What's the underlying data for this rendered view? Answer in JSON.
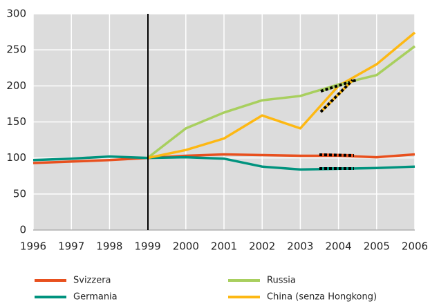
{
  "chart_data": {
    "type": "line",
    "x": [
      1996,
      1997,
      1998,
      1999,
      2000,
      2001,
      2002,
      2003,
      2004,
      2005,
      2006
    ],
    "xlim": [
      1996,
      2006
    ],
    "ylim": [
      0,
      300
    ],
    "yticks": [
      0,
      50,
      100,
      150,
      200,
      250,
      300
    ],
    "grid": true,
    "series": [
      {
        "name": "Svizzera",
        "color": "#e8501e",
        "values": [
          93,
          95,
          97,
          100,
          103,
          105,
          104,
          103,
          103,
          101,
          105
        ]
      },
      {
        "name": "Germania",
        "color": "#00937e",
        "values": [
          97,
          99,
          102,
          100,
          101,
          99,
          88,
          84,
          85,
          86,
          88
        ]
      },
      {
        "name": "Russia",
        "color": "#a8cf5e",
        "values": [
          null,
          null,
          null,
          100,
          141,
          163,
          180,
          186,
          202,
          215,
          255
        ]
      },
      {
        "name": "China (senza Hongkong)",
        "color": "#fdb813",
        "values": [
          null,
          null,
          null,
          100,
          111,
          127,
          159,
          141,
          200,
          230,
          274
        ]
      }
    ]
  }
}
